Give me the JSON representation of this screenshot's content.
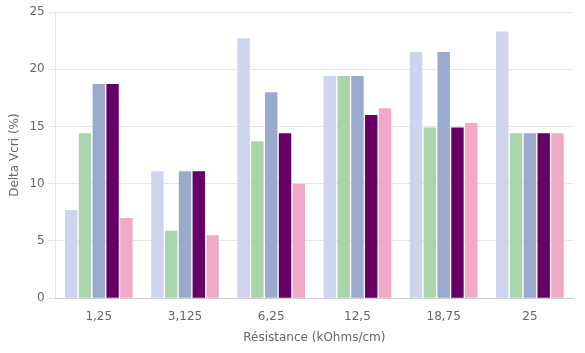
{
  "chart_data": {
    "type": "bar",
    "categories": [
      "1,25",
      "3,125",
      "6,25",
      "12,5",
      "18,75",
      "25"
    ],
    "series": [
      {
        "color": "#ccd4ee",
        "values": [
          7.7,
          11.1,
          22.7,
          19.4,
          21.5,
          23.3
        ]
      },
      {
        "color": "#aad4aa",
        "values": [
          14.4,
          5.9,
          13.7,
          19.4,
          14.9,
          14.4
        ]
      },
      {
        "color": "#99aacc",
        "values": [
          18.7,
          11.1,
          18.0,
          19.4,
          21.5,
          14.4
        ]
      },
      {
        "color": "#660066",
        "values": [
          18.7,
          11.1,
          14.4,
          16.0,
          14.9,
          14.4
        ]
      },
      {
        "color": "#f0aac8",
        "values": [
          7.0,
          5.5,
          10.0,
          16.6,
          15.3,
          14.4
        ]
      }
    ],
    "xlabel": "Résistance (kOhms/cm)",
    "ylabel": "Delta Vcri (%)",
    "ylim": [
      0,
      25
    ],
    "yticks": [
      0,
      5,
      10,
      15,
      20,
      25
    ],
    "grid": true
  }
}
